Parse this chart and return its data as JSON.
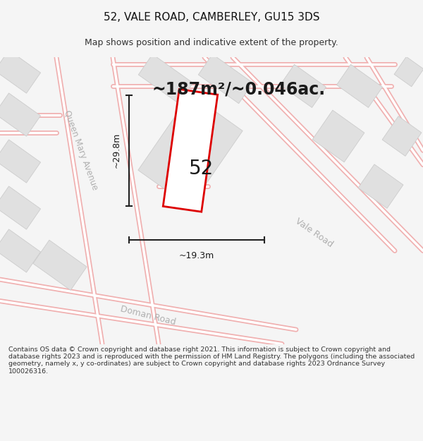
{
  "title": "52, VALE ROAD, CAMBERLEY, GU15 3DS",
  "subtitle": "Map shows position and indicative extent of the property.",
  "area_text": "~187m²/~0.046ac.",
  "label_52": "52",
  "dim_width": "~19.3m",
  "dim_height": "~29.8m",
  "road_label_vale": "Vale Road",
  "road_label_queen": "Queen Mary Avenue",
  "road_label_doman": "Doman Road",
  "footer": "Contains OS data © Crown copyright and database right 2021. This information is subject to Crown copyright and database rights 2023 and is reproduced with the permission of HM Land Registry. The polygons (including the associated geometry, namely x, y co-ordinates) are subject to Crown copyright and database rights 2023 Ordnance Survey 100026316.",
  "bg_color": "#f5f5f5",
  "map_bg": "#ffffff",
  "bld_fill": "#e0e0e0",
  "bld_edge": "#cccccc",
  "plot_outline": "#dd0000",
  "plot_fill": "#ffffff",
  "dim_line_color": "#222222",
  "road_line_color": "#f0b0b0",
  "road_inner_color": "#ffffff",
  "text_color": "#1a1a1a",
  "road_text_color": "#b0b0b0",
  "title_fontsize": 11,
  "subtitle_fontsize": 9,
  "area_fontsize": 17,
  "footer_fontsize": 6.8
}
